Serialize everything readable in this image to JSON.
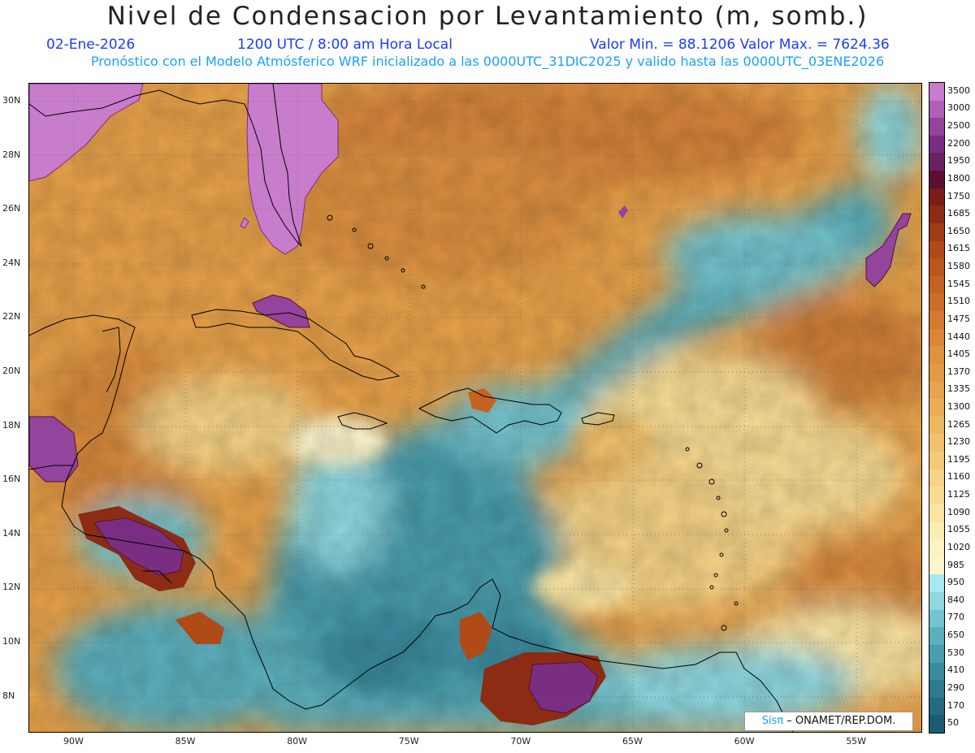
{
  "header": {
    "title": "Nivel de Condensacion por Levantamiento (m, somb.)",
    "date": "02-Ene-2026",
    "time": "1200 UTC / 8:00 am Hora Local",
    "minmax": "Valor Min. = 88.1206  Valor Max. = 7624.36",
    "subtitle": "Pronóstico con el Modelo Atmósferico WRF inicializado a las 0000UTC_31DIC2025 y valido hasta las  0000UTC_03ENE2026"
  },
  "axes": {
    "lat_labels": [
      "30N",
      "28N",
      "26N",
      "24N",
      "22N",
      "20N",
      "18N",
      "16N",
      "14N",
      "12N",
      "10N",
      "8N"
    ],
    "lon_labels": [
      "90W",
      "85W",
      "80W",
      "75W",
      "70W",
      "65W",
      "60W",
      "55W"
    ]
  },
  "colorbar": {
    "labels": [
      "3500",
      "3000",
      "2500",
      "2200",
      "1950",
      "1800",
      "1750",
      "1685",
      "1650",
      "1615",
      "1580",
      "1545",
      "1510",
      "1475",
      "1440",
      "1405",
      "1370",
      "1335",
      "1300",
      "1265",
      "1230",
      "1195",
      "1160",
      "1125",
      "1090",
      "1055",
      "1020",
      "985",
      "950",
      "840",
      "770",
      "650",
      "530",
      "410",
      "290",
      "170",
      "50"
    ],
    "colors": [
      "#c77ccc",
      "#b060b8",
      "#93449c",
      "#7a2e82",
      "#68225f",
      "#5a1030",
      "#7a1e18",
      "#8c2c14",
      "#a03c14",
      "#b04a18",
      "#bb561c",
      "#c56222",
      "#cd6e28",
      "#d37a30",
      "#d98638",
      "#de9240",
      "#e29a44",
      "#e6a44e",
      "#eaae58",
      "#eeb862",
      "#f1c16c",
      "#f4ca78",
      "#f6d386",
      "#f8dc94",
      "#fae4a2",
      "#fbecb2",
      "#fcf2c2",
      "#fdf6cc",
      "#a8e8ee",
      "#8fd8e0",
      "#74c4cf",
      "#5cb0be",
      "#4a9dae",
      "#3b8b9e",
      "#2e7a8f",
      "#246b80",
      "#1a5c72"
    ]
  },
  "credit": {
    "sis": "Sisπ",
    "rest": " – ONAMET/REP.DOM."
  }
}
